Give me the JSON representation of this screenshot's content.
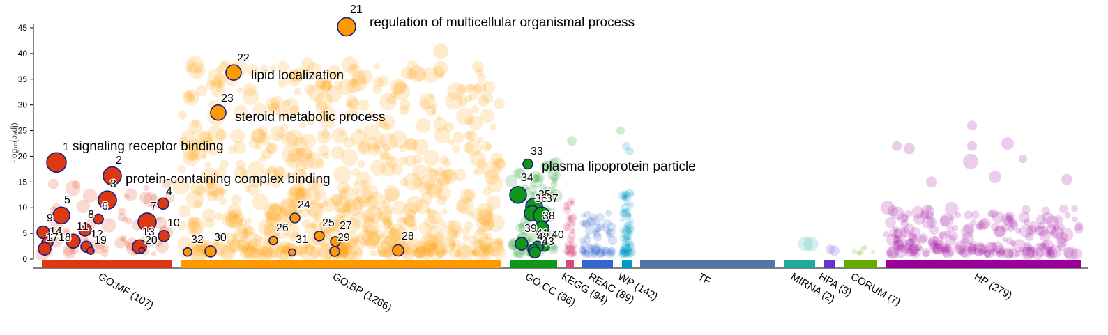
{
  "chart_data": {
    "type": "scatter",
    "title": "",
    "ylabel": "-log₁₀(pₐdj)",
    "ylim": [
      0,
      45
    ],
    "yticks": [
      0,
      5,
      10,
      15,
      20,
      25,
      30,
      35,
      40,
      45
    ],
    "grid": false,
    "legend": "none",
    "sources": [
      {
        "name": "GO:MF",
        "label": "GO:MF (107)",
        "color": "#dc3912",
        "count": 107
      },
      {
        "name": "GO:BP",
        "label": "GO:BP (1266)",
        "color": "#ff9900",
        "count": 1266
      },
      {
        "name": "GO:CC",
        "label": "GO:CC (86)",
        "color": "#109618",
        "count": 86
      },
      {
        "name": "KEGG",
        "label": "KEGG (94)",
        "color": "#dd4477",
        "count": 94
      },
      {
        "name": "REAC",
        "label": "REAC (89)",
        "color": "#3366cc",
        "count": 89
      },
      {
        "name": "WP",
        "label": "WP (142)",
        "color": "#0099c6",
        "count": 142
      },
      {
        "name": "TF",
        "label": "TF",
        "color": "#5574a6",
        "count": null
      },
      {
        "name": "MIRNA",
        "label": "MIRNA (2)",
        "color": "#22aa99",
        "count": 2
      },
      {
        "name": "HPA",
        "label": "HPA (3)",
        "color": "#6633cc",
        "count": 3
      },
      {
        "name": "CORUM",
        "label": "CORUM (7)",
        "color": "#66aa00",
        "count": 7
      },
      {
        "name": "HP",
        "label": "HP (279)",
        "color": "#990099",
        "count": 279
      }
    ],
    "highlighted": [
      {
        "id": "1",
        "source": "GO:MF",
        "y": 18.8,
        "name": "signaling receptor binding"
      },
      {
        "id": "2",
        "source": "GO:MF",
        "y": 16.2,
        "name": "protein-containing complex binding"
      },
      {
        "id": "3",
        "source": "GO:MF",
        "y": 11.5,
        "name": ""
      },
      {
        "id": "4",
        "source": "GO:MF",
        "y": 10.8,
        "name": ""
      },
      {
        "id": "5",
        "source": "GO:MF",
        "y": 8.5,
        "name": ""
      },
      {
        "id": "6",
        "source": "GO:MF",
        "y": 7.8,
        "name": ""
      },
      {
        "id": "7",
        "source": "GO:MF",
        "y": 7.2,
        "name": ""
      },
      {
        "id": "8",
        "source": "GO:MF",
        "y": 7.8,
        "name": ""
      },
      {
        "id": "9",
        "source": "GO:MF",
        "y": 5.2,
        "name": ""
      },
      {
        "id": "10",
        "source": "GO:MF",
        "y": 4.5,
        "name": ""
      },
      {
        "id": "11",
        "source": "GO:MF",
        "y": 5.7,
        "name": ""
      },
      {
        "id": "12",
        "source": "GO:MF",
        "y": 2.4,
        "name": ""
      },
      {
        "id": "13",
        "source": "GO:MF",
        "y": 2.4,
        "name": ""
      },
      {
        "id": "14",
        "source": "GO:MF",
        "y": 3.2,
        "name": ""
      },
      {
        "id": "17",
        "source": "GO:MF",
        "y": 2.0,
        "name": ""
      },
      {
        "id": "18",
        "source": "GO:MF",
        "y": 3.5,
        "name": ""
      },
      {
        "id": "19",
        "source": "GO:MF",
        "y": 1.6,
        "name": ""
      },
      {
        "id": "20",
        "source": "GO:MF",
        "y": 1.7,
        "name": ""
      },
      {
        "id": "21",
        "source": "GO:BP",
        "y": 45.2,
        "name": "regulation of multicellular organismal process"
      },
      {
        "id": "22",
        "source": "GO:BP",
        "y": 36.3,
        "name": "lipid localization"
      },
      {
        "id": "23",
        "source": "GO:BP",
        "y": 28.5,
        "name": "steroid metabolic process"
      },
      {
        "id": "24",
        "source": "GO:BP",
        "y": 8.0,
        "name": ""
      },
      {
        "id": "25",
        "source": "GO:BP",
        "y": 4.5,
        "name": ""
      },
      {
        "id": "26",
        "source": "GO:BP",
        "y": 3.6,
        "name": ""
      },
      {
        "id": "27",
        "source": "GO:BP",
        "y": 3.4,
        "name": ""
      },
      {
        "id": "28",
        "source": "GO:BP",
        "y": 1.7,
        "name": ""
      },
      {
        "id": "29",
        "source": "GO:BP",
        "y": 1.5,
        "name": ""
      },
      {
        "id": "30",
        "source": "GO:BP",
        "y": 1.5,
        "name": ""
      },
      {
        "id": "31",
        "source": "GO:BP",
        "y": 1.3,
        "name": ""
      },
      {
        "id": "32",
        "source": "GO:BP",
        "y": 1.4,
        "name": ""
      },
      {
        "id": "33",
        "source": "GO:CC",
        "y": 18.5,
        "name": "plasma lipoprotein particle"
      },
      {
        "id": "34",
        "source": "GO:CC",
        "y": 12.5,
        "name": ""
      },
      {
        "id": "35",
        "source": "GO:CC",
        "y": 10.2,
        "name": ""
      },
      {
        "id": "36",
        "source": "GO:CC",
        "y": 8.9,
        "name": ""
      },
      {
        "id": "37",
        "source": "GO:CC",
        "y": 8.5,
        "name": ""
      },
      {
        "id": "38",
        "source": "GO:CC",
        "y": 6.0,
        "name": ""
      },
      {
        "id": "39",
        "source": "GO:CC",
        "y": 3.0,
        "name": ""
      },
      {
        "id": "40",
        "source": "GO:CC",
        "y": 2.5,
        "name": ""
      },
      {
        "id": "41",
        "source": "GO:CC",
        "y": 2.4,
        "name": ""
      },
      {
        "id": "42",
        "source": "GO:CC",
        "y": 1.8,
        "name": ""
      },
      {
        "id": "43",
        "source": "GO:CC",
        "y": 1.3,
        "name": ""
      }
    ]
  }
}
